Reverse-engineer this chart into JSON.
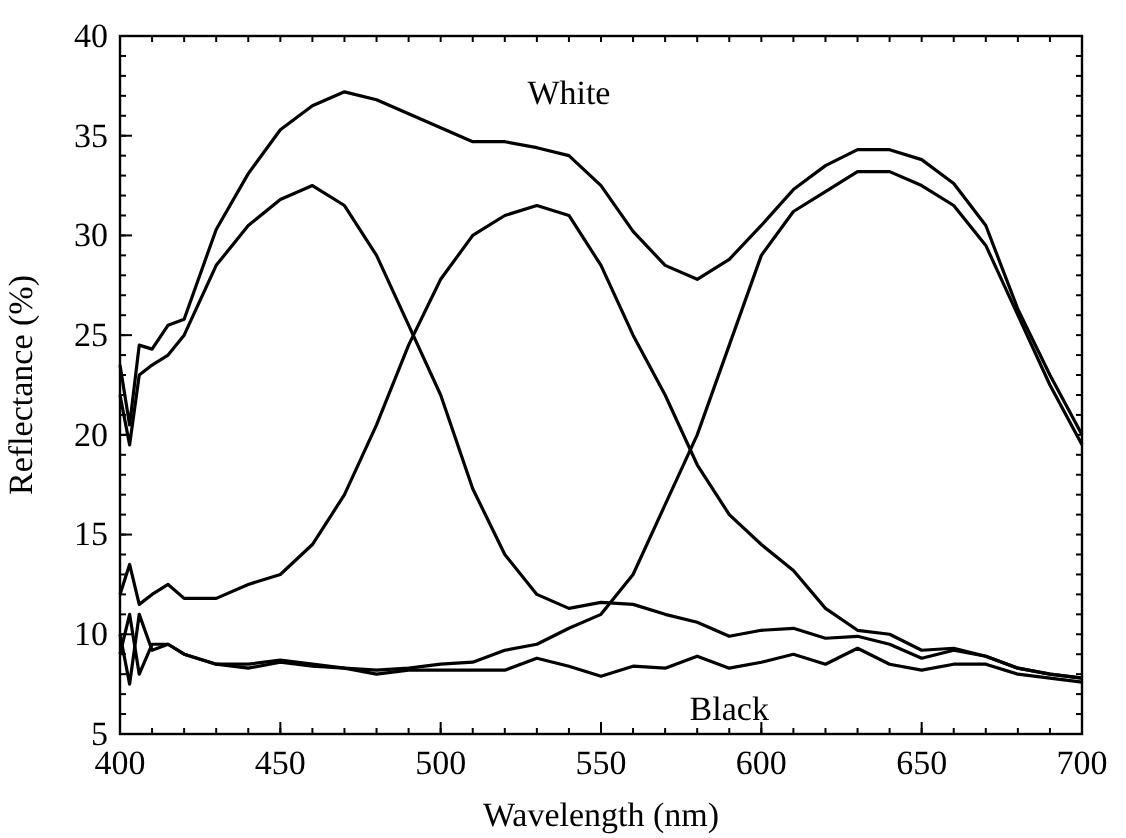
{
  "chart_data": {
    "type": "line",
    "xlabel": "Wavelength (nm)",
    "ylabel": "Reflectance (%)",
    "xlim": [
      400,
      700
    ],
    "ylim": [
      5,
      40
    ],
    "xticks": [
      400,
      450,
      500,
      550,
      600,
      650,
      700
    ],
    "yticks": [
      5,
      10,
      15,
      20,
      25,
      30,
      35,
      40
    ],
    "grid": false,
    "marker": "none",
    "line_style": "solid",
    "x": [
      400,
      403,
      406,
      410,
      415,
      420,
      430,
      440,
      450,
      460,
      470,
      480,
      490,
      500,
      510,
      520,
      530,
      540,
      550,
      560,
      570,
      580,
      590,
      600,
      610,
      620,
      630,
      640,
      650,
      660,
      670,
      680,
      690,
      700
    ],
    "series": [
      {
        "name": "White",
        "color": "#000000",
        "values": [
          23.5,
          20.5,
          24.5,
          24.3,
          25.5,
          25.8,
          30.3,
          33.1,
          35.3,
          36.5,
          37.2,
          36.8,
          36.1,
          35.4,
          34.7,
          34.7,
          34.4,
          34.0,
          32.5,
          30.2,
          28.5,
          27.8,
          28.8,
          30.5,
          32.3,
          33.5,
          34.3,
          34.3,
          33.8,
          32.6,
          30.5,
          26.3,
          23.0,
          20.0
        ]
      },
      {
        "color": "#000000",
        "values": [
          22.0,
          19.5,
          23.0,
          23.5,
          24.0,
          25.0,
          28.5,
          30.5,
          31.8,
          32.5,
          31.5,
          29.0,
          25.5,
          22.0,
          17.3,
          14.0,
          12.0,
          11.3,
          11.6,
          11.5,
          11.0,
          10.6,
          9.9,
          10.2,
          10.3,
          9.8,
          9.9,
          9.5,
          8.8,
          9.2,
          8.9,
          8.3,
          8.0,
          7.8
        ]
      },
      {
        "color": "#000000",
        "values": [
          12.0,
          13.5,
          11.5,
          12.0,
          12.5,
          11.8,
          11.8,
          12.5,
          13.0,
          14.5,
          17.0,
          20.5,
          24.5,
          27.8,
          30.0,
          31.0,
          31.5,
          31.0,
          28.5,
          25.0,
          22.0,
          18.5,
          16.0,
          14.5,
          13.2,
          11.3,
          10.2,
          10.0,
          9.2,
          9.3,
          8.9,
          8.3,
          8.0,
          7.8
        ]
      },
      {
        "color": "#000000",
        "values": [
          9.0,
          11.0,
          8.0,
          9.5,
          9.5,
          9.0,
          8.5,
          8.5,
          8.7,
          8.5,
          8.3,
          8.2,
          8.3,
          8.5,
          8.6,
          9.2,
          9.5,
          10.3,
          11.0,
          13.0,
          16.5,
          20.0,
          24.5,
          29.0,
          31.2,
          32.2,
          33.2,
          33.2,
          32.5,
          31.5,
          29.5,
          26.0,
          22.5,
          19.5
        ]
      },
      {
        "name": "Black",
        "color": "#000000",
        "values": [
          10.0,
          7.5,
          11.0,
          9.2,
          9.5,
          9.0,
          8.5,
          8.3,
          8.6,
          8.4,
          8.3,
          8.0,
          8.2,
          8.2,
          8.2,
          8.2,
          8.8,
          8.4,
          7.9,
          8.4,
          8.3,
          8.9,
          8.3,
          8.6,
          9.0,
          8.5,
          9.3,
          8.5,
          8.2,
          8.5,
          8.5,
          8.0,
          7.8,
          7.6
        ]
      }
    ]
  }
}
